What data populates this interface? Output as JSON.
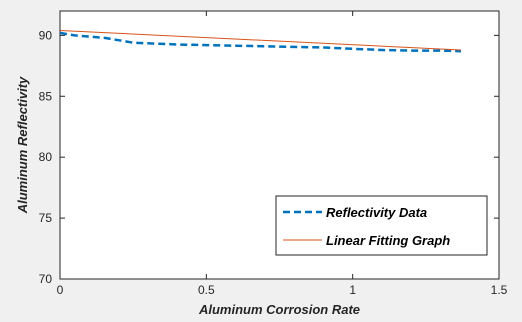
{
  "chart_data": {
    "type": "line",
    "xlabel": "Aluminum Corrosion Rate",
    "ylabel": "Aluminum Reflectivity",
    "xlim": [
      0,
      1.5
    ],
    "ylim": [
      70,
      92
    ],
    "xticks": [
      0,
      0.5,
      1,
      1.5
    ],
    "yticks": [
      70,
      75,
      80,
      85,
      90
    ],
    "xtick_labels": [
      "0",
      "0.5",
      "1",
      "1.5"
    ],
    "ytick_labels": [
      "70",
      "75",
      "80",
      "85",
      "90"
    ],
    "grid": false,
    "legend_position": "bottom-right",
    "series": [
      {
        "name": "Reflectivity Data",
        "style": "dashed",
        "color": "#0072bd",
        "x": [
          0,
          0.05,
          0.1,
          0.15,
          0.2,
          0.25,
          0.3,
          0.35,
          0.4,
          0.5,
          0.6,
          0.7,
          0.8,
          0.9,
          1.0,
          1.1,
          1.2,
          1.3,
          1.37
        ],
        "y": [
          90.2,
          90.0,
          89.9,
          89.8,
          89.6,
          89.4,
          89.35,
          89.3,
          89.25,
          89.2,
          89.15,
          89.1,
          89.05,
          89.0,
          88.9,
          88.8,
          88.75,
          88.75,
          88.7
        ]
      },
      {
        "name": "Linear Fitting Graph",
        "style": "solid",
        "color": "#d95319",
        "x": [
          0,
          1.37
        ],
        "y": [
          90.4,
          88.8
        ]
      }
    ]
  }
}
